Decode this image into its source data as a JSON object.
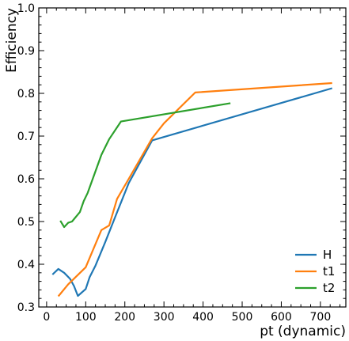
{
  "chart_data": {
    "type": "line",
    "xlabel": "pt (dynamic)",
    "ylabel": "Efficiency",
    "xlim": [
      -20,
      765
    ],
    "ylim": [
      0.3,
      1.0
    ],
    "xticks": [
      0,
      100,
      200,
      300,
      400,
      500,
      600,
      700
    ],
    "yticks": [
      0.3,
      0.4,
      0.5,
      0.6,
      0.7,
      0.8,
      0.9,
      1.0
    ],
    "grid": false,
    "legend_position": "bottom-right",
    "series": [
      {
        "name": "H",
        "color": "#1f77b4",
        "x": [
          15,
          30,
          45,
          60,
          70,
          80,
          100,
          110,
          125,
          150,
          175,
          210,
          270,
          730
        ],
        "y": [
          0.376,
          0.389,
          0.38,
          0.366,
          0.349,
          0.326,
          0.342,
          0.37,
          0.397,
          0.452,
          0.51,
          0.59,
          0.69,
          0.812
        ]
      },
      {
        "name": "t1",
        "color": "#ff7f0e",
        "x": [
          30,
          55,
          100,
          140,
          160,
          180,
          210,
          270,
          300,
          380,
          730
        ],
        "y": [
          0.325,
          0.353,
          0.393,
          0.48,
          0.491,
          0.553,
          0.6,
          0.695,
          0.73,
          0.802,
          0.824
        ]
      },
      {
        "name": "t2",
        "color": "#2ca02c",
        "x": [
          35,
          45,
          55,
          65,
          85,
          95,
          105,
          140,
          160,
          190,
          470
        ],
        "y": [
          0.502,
          0.487,
          0.497,
          0.5,
          0.522,
          0.548,
          0.567,
          0.656,
          0.693,
          0.734,
          0.777
        ]
      }
    ]
  }
}
